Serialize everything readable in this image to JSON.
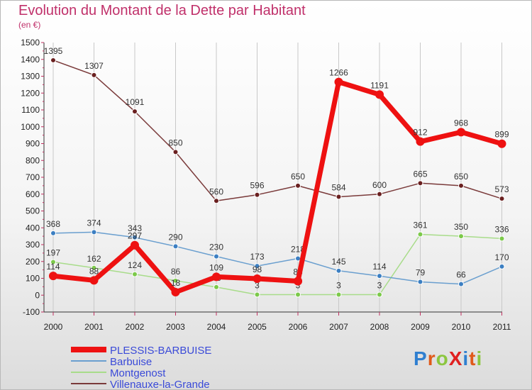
{
  "title": "Evolution du Montant de la Dette par Habitant",
  "subtitle": "(en €)",
  "logo": {
    "text": "ProXiti",
    "colors": [
      "#2f7fd0",
      "#e05a1a",
      "#8cc63f",
      "#e02020",
      "#2f7fd0",
      "#e05a1a",
      "#8cc63f"
    ]
  },
  "chart_data": {
    "type": "line",
    "x": [
      "2000",
      "2001",
      "2002",
      "2003",
      "2004",
      "2005",
      "2006",
      "2007",
      "2008",
      "2009",
      "2010",
      "2011"
    ],
    "ylim": [
      -100,
      1500
    ],
    "yticks": [
      -100,
      0,
      100,
      200,
      300,
      400,
      500,
      600,
      700,
      800,
      900,
      1000,
      1100,
      1200,
      1300,
      1400,
      1500
    ],
    "grid": "vertical",
    "legend": "bottom-left",
    "series": [
      {
        "name": "PLESSIS-BARBUISE",
        "color": "#ee1111",
        "marker": "#ee1111",
        "width": 7,
        "values": [
          114,
          88,
          297,
          18,
          109,
          98,
          83,
          null,
          null,
          null,
          null,
          null
        ],
        "labels": [
          "114",
          "88",
          "297",
          "18",
          "109",
          "98",
          "83",
          "",
          "",
          "",
          "",
          ""
        ]
      },
      {
        "name": "PLESSIS-BARBUISE",
        "color": "#ee1111",
        "marker": "#ee1111",
        "width": 7,
        "values": [
          null,
          null,
          null,
          null,
          null,
          null,
          83,
          1266,
          1191,
          912,
          968,
          899
        ],
        "labels": [
          "",
          "",
          "",
          "",
          "",
          "",
          "",
          "1266",
          "1191",
          "912",
          "968",
          "899"
        ]
      },
      {
        "name": "Barbuise",
        "color": "#6a9fcf",
        "marker": "#3c7fc2",
        "width": 1.5,
        "values": [
          368,
          374,
          343,
          290,
          230,
          173,
          218,
          145,
          114,
          79,
          66,
          170
        ],
        "labels": [
          "368",
          "374",
          "343",
          "290",
          "230",
          "173",
          "218",
          "145",
          "114",
          "79",
          "66",
          "170"
        ]
      },
      {
        "name": "Montgenost",
        "color": "#a8dc8a",
        "marker": "#7cc94a",
        "width": 1.5,
        "values": [
          197,
          162,
          124,
          86,
          48,
          3,
          3,
          3,
          3,
          361,
          350,
          336
        ],
        "labels": [
          "197",
          "162",
          "124",
          "86",
          "48",
          "3",
          "3",
          "3",
          "3",
          "361",
          "350",
          "336"
        ]
      },
      {
        "name": "Villenauxe-la-Grande",
        "color": "#7a3a3a",
        "marker": "#6a2020",
        "width": 1.5,
        "values": [
          1395,
          1307,
          1091,
          850,
          560,
          596,
          650,
          584,
          600,
          665,
          650,
          573
        ],
        "labels": [
          "1395",
          "1307",
          "1091",
          "850",
          "560",
          "596",
          "650",
          "584",
          "600",
          "665",
          "650",
          "573"
        ]
      }
    ],
    "legend_items": [
      {
        "label": "PLESSIS-BARBUISE",
        "color": "#ee1111",
        "width": 8
      },
      {
        "label": "Barbuise",
        "color": "#6a9fcf",
        "width": 2
      },
      {
        "label": "Montgenost",
        "color": "#a8dc8a",
        "width": 2
      },
      {
        "label": "Villenauxe-la-Grande",
        "color": "#7a3a3a",
        "width": 2
      }
    ]
  }
}
